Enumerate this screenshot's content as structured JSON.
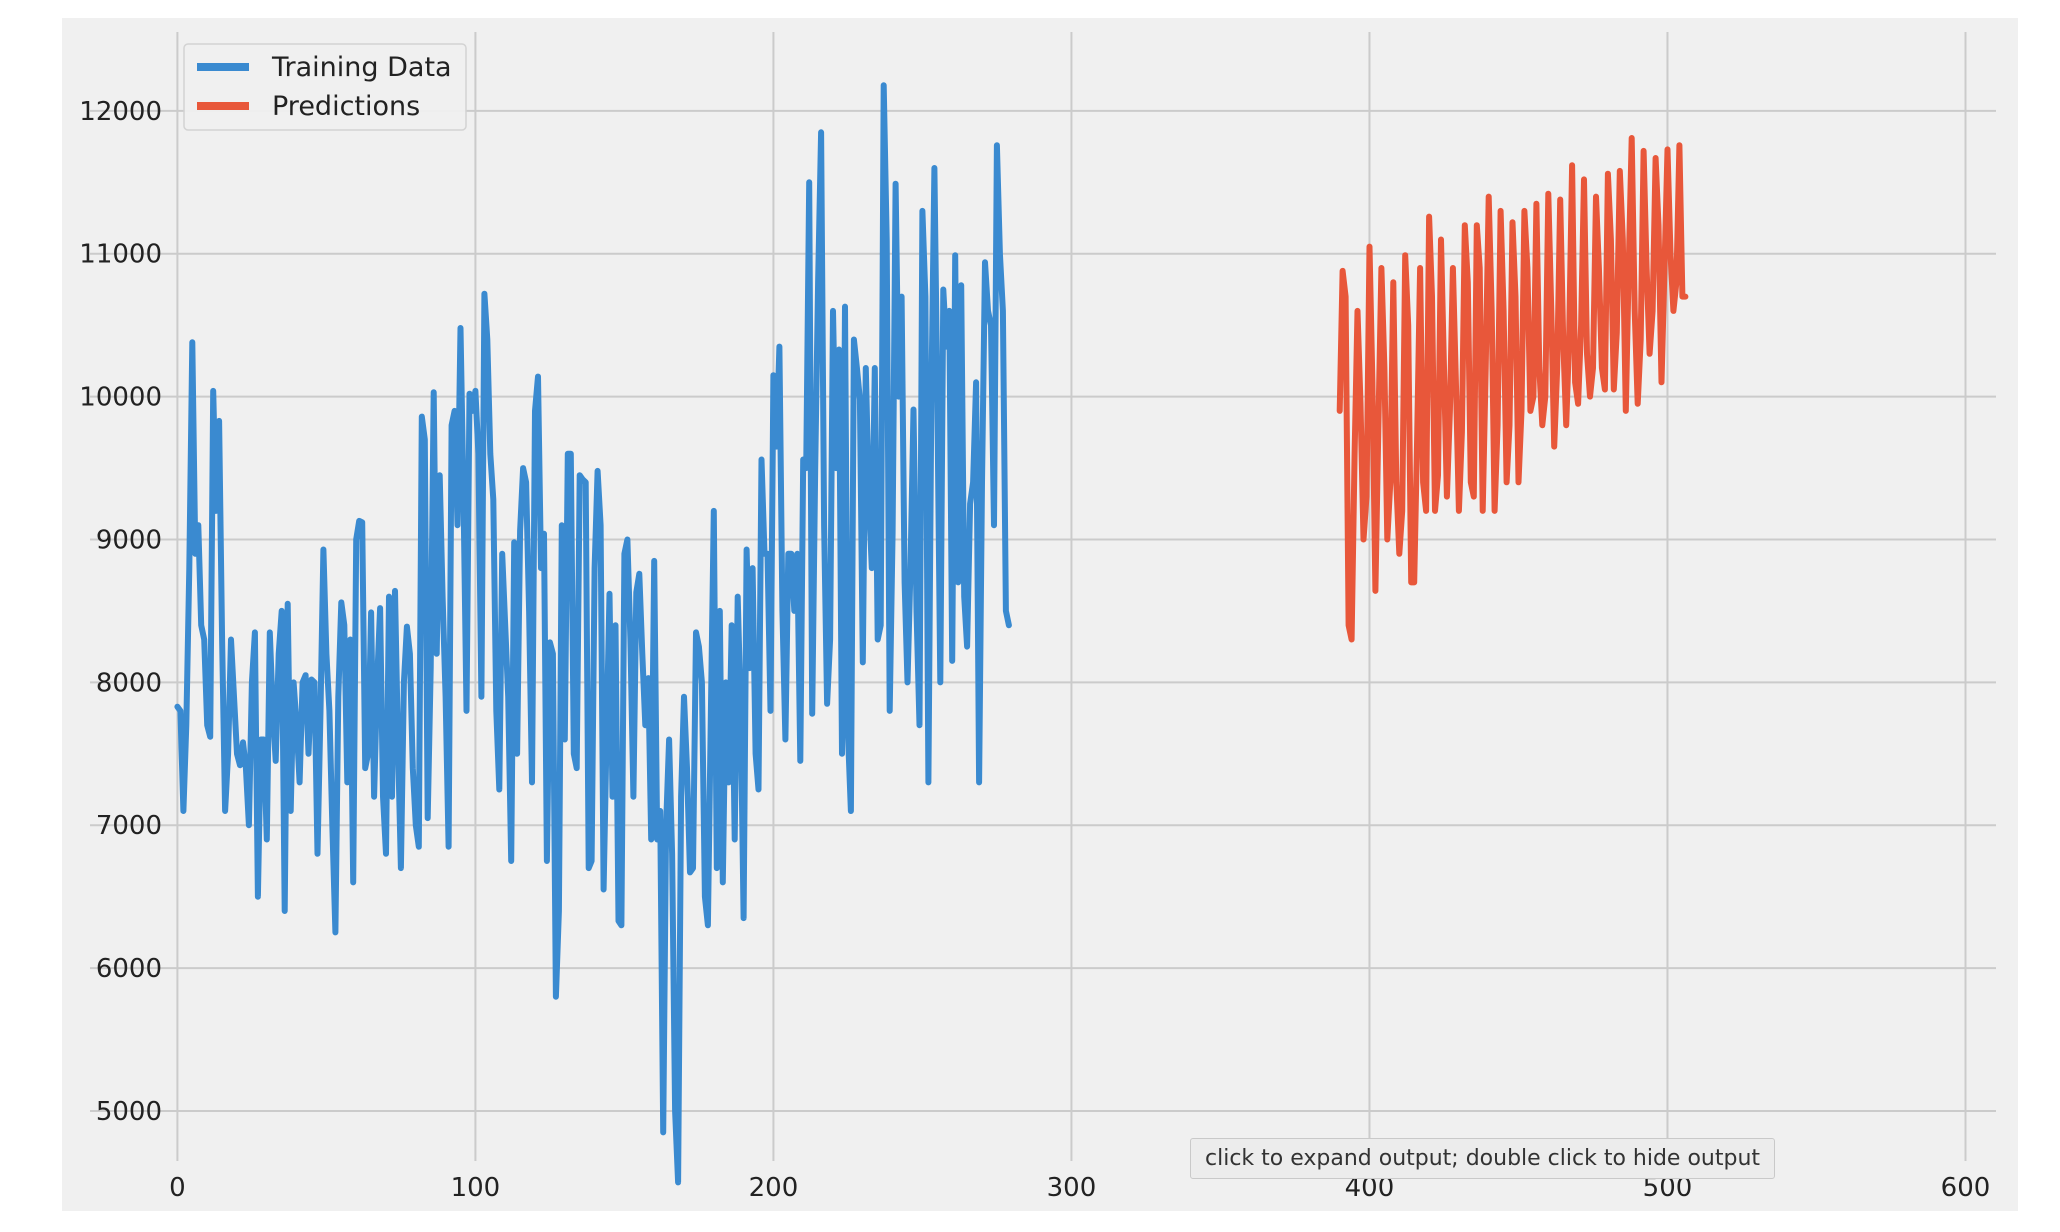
{
  "output_hint": "click to expand output; double click to hide output",
  "colors": {
    "background": "#f0f0f0",
    "grid": "#cbcbcb",
    "training": "#3a8ad0",
    "predictions": "#e8573a"
  },
  "chart_data": {
    "type": "line",
    "title": "",
    "xlabel": "",
    "ylabel": "",
    "xlim": [
      -30,
      625
    ],
    "ylim": [
      4300,
      12650
    ],
    "xticks": [
      0,
      100,
      200,
      300,
      400,
      500,
      600
    ],
    "yticks": [
      5000,
      6000,
      7000,
      8000,
      9000,
      10000,
      11000,
      12000
    ],
    "grid": true,
    "legend_position": "top-left",
    "series": [
      {
        "name": "Training Data",
        "color": "#3a8ad0",
        "x_start": 0,
        "values": [
          7830,
          7800,
          7100,
          7700,
          8800,
          10380,
          8900,
          9100,
          8400,
          8300,
          7700,
          7620,
          10040,
          9200,
          9830,
          8300,
          7100,
          7500,
          8300,
          7900,
          7500,
          7420,
          7580,
          7400,
          7000,
          8000,
          8350,
          6500,
          7600,
          7600,
          6900,
          8350,
          7800,
          7450,
          8200,
          8500,
          6400,
          8550,
          7100,
          8000,
          7700,
          7300,
          8000,
          8050,
          7500,
          8020,
          8000,
          6800,
          7800,
          8930,
          8200,
          7800,
          6980,
          6250,
          7900,
          8560,
          8400,
          7300,
          8300,
          6600,
          9000,
          9130,
          9120,
          7400,
          7500,
          8490,
          7200,
          8000,
          8520,
          7200,
          6800,
          8600,
          7200,
          8640,
          7600,
          6700,
          8000,
          8390,
          8200,
          7400,
          7000,
          6850,
          9860,
          9700,
          7050,
          8100,
          10030,
          8200,
          9450,
          8600,
          7900,
          6850,
          9800,
          9900,
          9100,
          10480,
          9300,
          7800,
          10020,
          9900,
          10040,
          9600,
          7900,
          10720,
          10400,
          9600,
          9280,
          7800,
          7250,
          8900,
          8400,
          7900,
          6750,
          8980,
          7500,
          9060,
          9500,
          9400,
          8500,
          7300,
          9900,
          10140,
          8800,
          9040,
          6750,
          8280,
          8200,
          5800,
          6400,
          9100,
          7600,
          9600,
          9600,
          7500,
          7400,
          9450,
          9420,
          9400,
          6700,
          6750,
          8800,
          9480,
          9100,
          6550,
          7600,
          8620,
          7200,
          8400,
          6330,
          6300,
          8900,
          9000,
          8300,
          7200,
          8630,
          8760,
          8200,
          7700,
          8030,
          6900,
          8850,
          6900,
          7100,
          4850,
          7000,
          7600,
          6800,
          5000,
          4500,
          7200,
          7900,
          7400,
          6670,
          6700,
          8350,
          8250,
          8000,
          6500,
          6300,
          7800,
          9200,
          6700,
          8500,
          6600,
          8000,
          7300,
          8400,
          6900,
          8600,
          7800,
          6350,
          8930,
          8100,
          8800,
          7500,
          7250,
          9560,
          8900,
          8900,
          7800,
          10150,
          9650,
          10350,
          8500,
          7600,
          8900,
          8900,
          8500,
          8900,
          7450,
          9560,
          9500,
          11500,
          7780,
          9500,
          10800,
          11850,
          9100,
          7850,
          8300,
          10600,
          9500,
          10330,
          7500,
          10630,
          7650,
          7100,
          10400,
          10200,
          9980,
          8140,
          10200,
          9300,
          8800,
          10200,
          8300,
          8400,
          12180,
          11100,
          7800,
          9050,
          11490,
          10000,
          10700,
          8700,
          8000,
          8800,
          9910,
          8500,
          7700,
          11300,
          10700,
          7300,
          10020,
          11600,
          10000,
          8000,
          10750,
          10350,
          10600,
          8150,
          10990,
          8700,
          10780,
          8600,
          8250,
          9250,
          9400,
          10100,
          7300,
          9400,
          10940,
          10600,
          10500,
          9100,
          11760,
          11000,
          10600,
          8500,
          8400
        ]
      },
      {
        "name": "Predictions",
        "color": "#e8573a",
        "x_start": 390,
        "values": [
          9900,
          10880,
          10700,
          8400,
          8300,
          9600,
          10600,
          9950,
          9000,
          9300,
          11050,
          10100,
          8640,
          9800,
          10900,
          10200,
          9000,
          9400,
          10800,
          9400,
          8900,
          9200,
          10990,
          10500,
          8700,
          8700,
          9700,
          10900,
          9400,
          9200,
          11260,
          10700,
          9200,
          9450,
          11100,
          10200,
          9300,
          9900,
          10900,
          10100,
          9200,
          9750,
          11200,
          10800,
          9400,
          9300,
          11200,
          10900,
          9200,
          10200,
          11400,
          10600,
          9200,
          9800,
          11300,
          10600,
          9400,
          9800,
          11220,
          10700,
          9400,
          9900,
          11300,
          10900,
          9900,
          10000,
          11350,
          10200,
          9800,
          10000,
          11420,
          10600,
          9650,
          10200,
          11380,
          10400,
          9800,
          10400,
          11620,
          10100,
          9950,
          10500,
          11520,
          10300,
          10000,
          10200,
          11400,
          10900,
          10200,
          10050,
          11560,
          11100,
          10050,
          10450,
          11580,
          11100,
          9900,
          10900,
          11810,
          10600,
          9950,
          10400,
          11720,
          10900,
          10300,
          10600,
          11670,
          11200,
          10100,
          10900,
          11730,
          11000,
          10600,
          10800,
          11760,
          10700,
          10700
        ]
      }
    ]
  }
}
